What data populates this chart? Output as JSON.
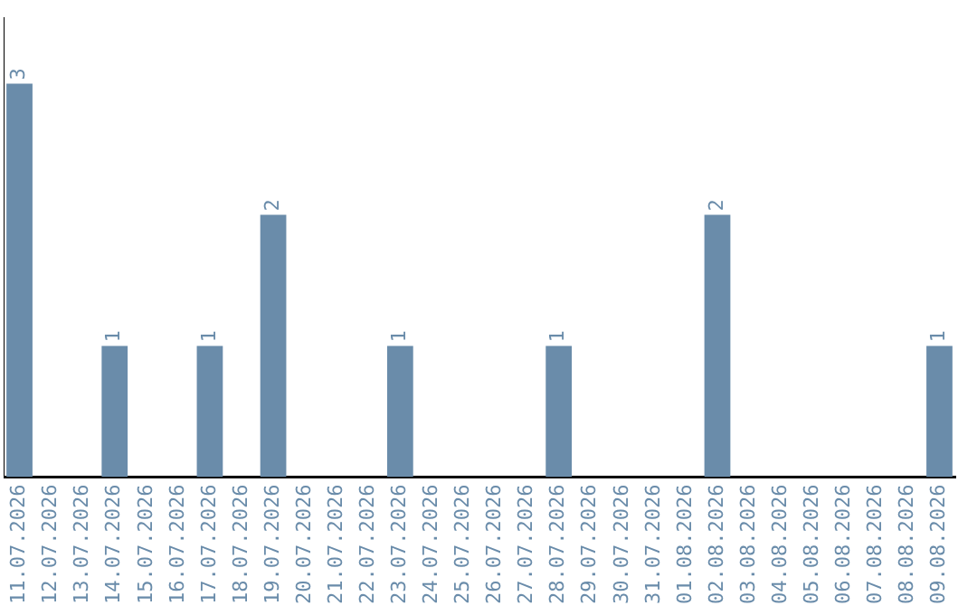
{
  "chart_data": {
    "type": "bar",
    "categories": [
      "11.07.2026",
      "12.07.2026",
      "13.07.2026",
      "14.07.2026",
      "15.07.2026",
      "16.07.2026",
      "17.07.2026",
      "18.07.2026",
      "19.07.2026",
      "20.07.2026",
      "21.07.2026",
      "22.07.2026",
      "23.07.2026",
      "24.07.2026",
      "25.07.2026",
      "26.07.2026",
      "27.07.2026",
      "28.07.2026",
      "29.07.2026",
      "30.07.2026",
      "31.07.2026",
      "01.08.2026",
      "02.08.2026",
      "03.08.2026",
      "04.08.2026",
      "05.08.2026",
      "06.08.2026",
      "07.08.2026",
      "08.08.2026",
      "09.08.2026"
    ],
    "values": [
      3,
      0,
      0,
      1,
      0,
      0,
      1,
      0,
      2,
      0,
      0,
      0,
      1,
      0,
      0,
      0,
      0,
      1,
      0,
      0,
      0,
      0,
      2,
      0,
      0,
      0,
      0,
      0,
      0,
      1
    ],
    "value_labels": [
      "3",
      null,
      null,
      "1",
      null,
      null,
      "1",
      null,
      "2",
      null,
      null,
      null,
      "1",
      null,
      null,
      null,
      null,
      "1",
      null,
      null,
      null,
      null,
      "2",
      null,
      null,
      null,
      null,
      null,
      null,
      "1"
    ],
    "color": "#6a8caa",
    "grid": false,
    "legend": false,
    "tick_labels": "x"
  }
}
